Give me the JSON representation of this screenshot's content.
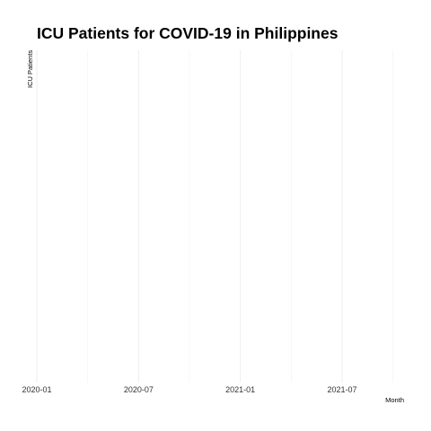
{
  "chart_data": {
    "type": "line",
    "title": "ICU Patients for COVID-19 in Philippines",
    "xlabel": "Month",
    "ylabel": "ICU Patients",
    "x_ticks": [
      "2020-01",
      "2020-07",
      "2021-01",
      "2021-07"
    ],
    "xlim": [
      "2020-01",
      "2021-10"
    ],
    "series": [],
    "grid": true,
    "legend": "none"
  }
}
